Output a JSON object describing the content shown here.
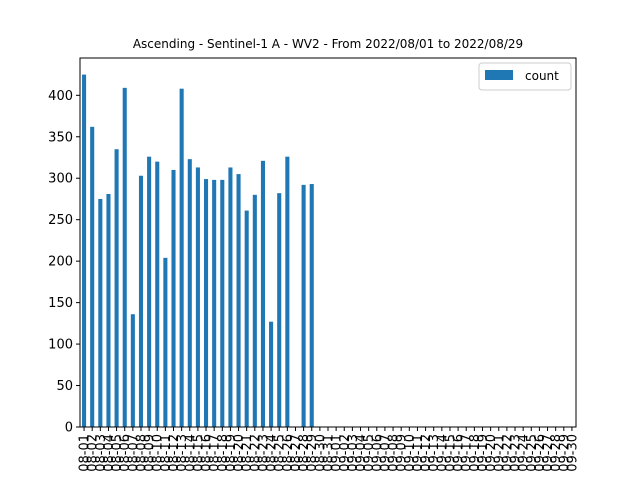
{
  "chart_data": {
    "type": "bar",
    "title": "Ascending - Sentinel-1 A - WV2 - From 2022/08/01 to 2022/08/29",
    "xlabel": "",
    "ylabel": "",
    "ylim": [
      0,
      445
    ],
    "yticks": [
      0,
      50,
      100,
      150,
      200,
      250,
      300,
      350,
      400
    ],
    "grid": false,
    "legend_position": "top-right",
    "categories": [
      "08-01",
      "08-02",
      "08-03",
      "08-04",
      "08-05",
      "08-06",
      "08-07",
      "08-08",
      "08-09",
      "08-10",
      "08-11",
      "08-12",
      "08-13",
      "08-14",
      "08-15",
      "08-16",
      "08-17",
      "08-18",
      "08-19",
      "08-20",
      "08-21",
      "08-22",
      "08-23",
      "08-24",
      "08-25",
      "08-26",
      "08-27",
      "08-28",
      "08-29",
      "08-30",
      "08-31",
      "09-01",
      "09-02",
      "09-03",
      "09-04",
      "09-05",
      "09-06",
      "09-07",
      "09-08",
      "09-09",
      "09-10",
      "09-11",
      "09-12",
      "09-13",
      "09-14",
      "09-15",
      "09-16",
      "09-17",
      "09-18",
      "09-19",
      "09-20",
      "09-21",
      "09-22",
      "09-23",
      "09-24",
      "09-25",
      "09-26",
      "09-27",
      "09-28",
      "09-29",
      "09-30"
    ],
    "series": [
      {
        "name": "count",
        "color": "#1f77b4",
        "values": [
          425,
          362,
          275,
          281,
          335,
          409,
          136,
          303,
          326,
          320,
          204,
          310,
          408,
          323,
          313,
          299,
          298,
          298,
          313,
          305,
          261,
          280,
          321,
          127,
          282,
          326,
          0,
          292,
          293,
          0,
          0,
          0,
          0,
          0,
          0,
          0,
          0,
          0,
          0,
          0,
          0,
          0,
          0,
          0,
          0,
          0,
          0,
          0,
          0,
          0,
          0,
          0,
          0,
          0,
          0,
          0,
          0,
          0,
          0,
          0,
          0
        ]
      }
    ]
  }
}
